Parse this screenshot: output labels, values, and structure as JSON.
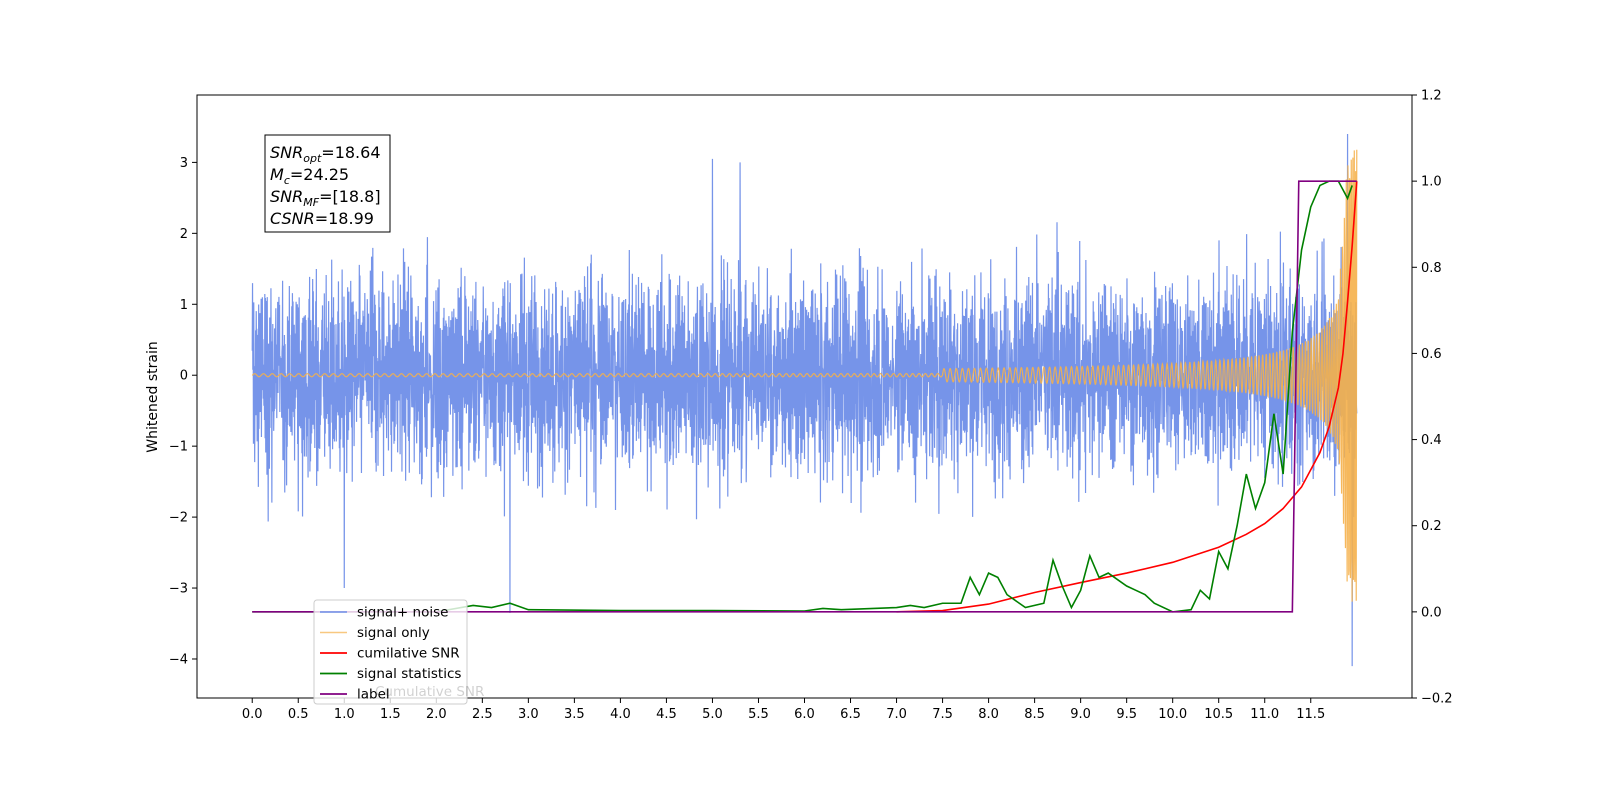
{
  "chart_data": {
    "type": "line",
    "title": "",
    "xlabel": "",
    "ylabel": "Whitened strain",
    "xlim": [
      -0.6,
      12.6
    ],
    "ylim": [
      -4.55,
      3.95
    ],
    "y2lim": [
      -0.2,
      1.2
    ],
    "x_ticks": [
      "0.0",
      "0.5",
      "1.0",
      "1.5",
      "2.0",
      "2.5",
      "3.0",
      "3.5",
      "4.0",
      "4.5",
      "5.0",
      "5.5",
      "6.0",
      "6.5",
      "7.0",
      "7.5",
      "8.0",
      "8.5",
      "9.0",
      "9.5",
      "10.0",
      "10.5",
      "11.0",
      "11.5"
    ],
    "y_ticks": [
      "3",
      "2",
      "1",
      "0",
      "−1",
      "−2",
      "−3",
      "−4"
    ],
    "y2_ticks": [
      "1.2",
      "1.0",
      "0.8",
      "0.6",
      "0.4",
      "0.2",
      "0.0",
      "−0.2"
    ],
    "legend_position": "lower-left",
    "info_box": {
      "lines": [
        {
          "sym": "SNR",
          "sub": "opt",
          "val": "=18.64"
        },
        {
          "sym": "M",
          "sub": "c",
          "val": "=24.25"
        },
        {
          "sym": "SNR",
          "sub": "MF",
          "val": "=[18.8]"
        },
        {
          "sym": "CSNR",
          "sub": "",
          "val": "=18.99"
        }
      ]
    },
    "legend_ghost_text": "Cumulative SNR",
    "series": [
      {
        "name": "signal+ noise",
        "color": "#6f8ee8",
        "axis": "left",
        "kind": "noise_band",
        "x_range": [
          0.0,
          12.0
        ],
        "noise_sigma": 0.95,
        "peak_values": [
          [
            1.0,
            -3.0
          ],
          [
            2.8,
            -3.35
          ],
          [
            5.0,
            3.05
          ],
          [
            5.3,
            3.0
          ],
          [
            11.9,
            3.4
          ],
          [
            11.95,
            -4.1
          ]
        ]
      },
      {
        "name": "signal only",
        "color": "#f5b04a",
        "axis": "left",
        "kind": "chirp",
        "x_range": [
          0.0,
          12.0
        ],
        "amplitude_start": 0.02,
        "amplitude_end": 3.2
      },
      {
        "name": "cumilative SNR",
        "color": "#ff0000",
        "axis": "right",
        "x": [
          7.0,
          7.5,
          8.0,
          8.5,
          9.0,
          9.5,
          10.0,
          10.5,
          10.8,
          11.0,
          11.2,
          11.4,
          11.6,
          11.7,
          11.8,
          11.85,
          11.9,
          11.95,
          12.0
        ],
        "y": [
          0.0,
          0.003,
          0.018,
          0.045,
          0.068,
          0.09,
          0.115,
          0.15,
          0.18,
          0.205,
          0.24,
          0.29,
          0.37,
          0.43,
          0.52,
          0.6,
          0.72,
          0.85,
          1.0
        ]
      },
      {
        "name": "signal statistics",
        "color": "#008000",
        "axis": "right",
        "x": [
          0.0,
          2.0,
          2.4,
          2.6,
          2.8,
          3.0,
          4.0,
          5.0,
          6.0,
          6.2,
          6.4,
          7.0,
          7.15,
          7.3,
          7.5,
          7.7,
          7.8,
          7.9,
          8.0,
          8.1,
          8.2,
          8.4,
          8.6,
          8.7,
          8.8,
          8.9,
          9.0,
          9.1,
          9.2,
          9.3,
          9.5,
          9.6,
          9.7,
          9.8,
          10.0,
          10.2,
          10.3,
          10.4,
          10.5,
          10.6,
          10.7,
          10.8,
          10.9,
          11.0,
          11.1,
          11.2,
          11.3,
          11.4,
          11.5,
          11.6,
          11.7,
          11.8,
          11.9,
          11.95
        ],
        "y": [
          0.0,
          0.0,
          0.015,
          0.01,
          0.02,
          0.005,
          0.003,
          0.003,
          0.002,
          0.008,
          0.005,
          0.01,
          0.015,
          0.01,
          0.02,
          0.02,
          0.08,
          0.04,
          0.09,
          0.08,
          0.04,
          0.01,
          0.02,
          0.12,
          0.06,
          0.01,
          0.05,
          0.13,
          0.08,
          0.09,
          0.06,
          0.05,
          0.04,
          0.02,
          0.0,
          0.005,
          0.05,
          0.03,
          0.14,
          0.1,
          0.2,
          0.32,
          0.24,
          0.3,
          0.46,
          0.32,
          0.65,
          0.84,
          0.94,
          0.99,
          1.0,
          1.0,
          0.96,
          0.99
        ]
      },
      {
        "name": "label",
        "color": "#800080",
        "axis": "right",
        "x": [
          0.0,
          11.3,
          11.37,
          12.0,
          12.0
        ],
        "y": [
          0.0,
          0.0,
          1.0,
          1.0,
          1.0
        ]
      }
    ]
  }
}
